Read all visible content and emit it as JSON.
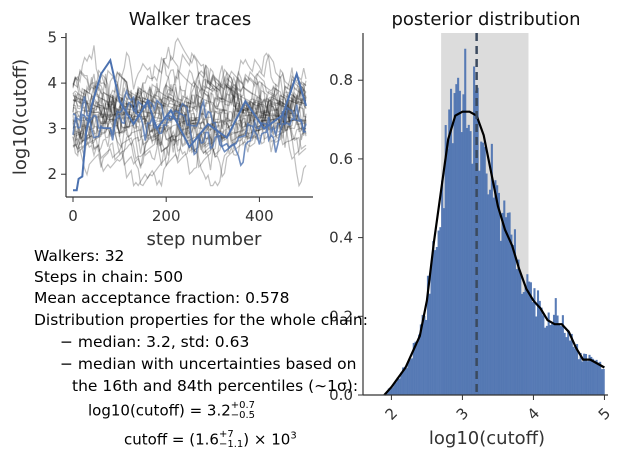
{
  "colors": {
    "trace_dark": "#1a1a1a",
    "trace_blue": "#4c72b0",
    "hist": "#4c72b0",
    "band": "#dcdcdc",
    "kde": "#000000",
    "median_line": "#3b4a5e"
  },
  "chart_data": [
    {
      "type": "line",
      "title": "Walker traces",
      "xlabel": "step number",
      "ylabel": "log10(cutoff)",
      "xlim": [
        -15,
        515
      ],
      "ylim": [
        1.5,
        5.1
      ],
      "xticks": [
        0,
        200,
        400
      ],
      "yticks": [
        2,
        3,
        4,
        5
      ],
      "n_walkers": 32,
      "n_steps": 500,
      "highlight_walker_path": [
        [
          0,
          1.65
        ],
        [
          8,
          1.65
        ],
        [
          12,
          1.9
        ],
        [
          20,
          1.95
        ],
        [
          28,
          2.9
        ],
        [
          40,
          3.5
        ],
        [
          60,
          4.2
        ],
        [
          80,
          4.5
        ],
        [
          100,
          3.6
        ],
        [
          130,
          3.1
        ],
        [
          160,
          3.6
        ],
        [
          180,
          3.0
        ],
        [
          210,
          3.4
        ],
        [
          250,
          2.6
        ],
        [
          290,
          3.1
        ],
        [
          330,
          2.8
        ],
        [
          370,
          3.6
        ],
        [
          410,
          3.0
        ],
        [
          450,
          3.3
        ],
        [
          480,
          4.2
        ],
        [
          500,
          3.5
        ]
      ]
    },
    {
      "type": "bar",
      "title": "posterior distribution",
      "xlabel": "log10(cutoff)",
      "ylabel": "",
      "xlim": [
        1.6,
        5.05
      ],
      "ylim": [
        0,
        0.92
      ],
      "xticks": [
        2,
        3,
        4,
        5
      ],
      "yticks": [
        0.0,
        0.2,
        0.4,
        0.6,
        0.8
      ],
      "median": 3.2,
      "band": [
        2.7,
        3.93
      ],
      "kde_x": [
        1.9,
        2.0,
        2.2,
        2.4,
        2.5,
        2.6,
        2.7,
        2.8,
        2.9,
        3.0,
        3.1,
        3.2,
        3.3,
        3.4,
        3.5,
        3.6,
        3.7,
        3.8,
        3.9,
        4.0,
        4.1,
        4.2,
        4.3,
        4.4,
        4.5,
        4.6,
        4.7,
        4.8,
        4.9,
        5.0
      ],
      "kde_y": [
        0.0,
        0.02,
        0.07,
        0.15,
        0.24,
        0.39,
        0.52,
        0.65,
        0.71,
        0.72,
        0.72,
        0.71,
        0.66,
        0.57,
        0.48,
        0.42,
        0.38,
        0.32,
        0.27,
        0.24,
        0.22,
        0.19,
        0.18,
        0.18,
        0.16,
        0.12,
        0.09,
        0.09,
        0.08,
        0.07
      ]
    }
  ],
  "info": {
    "walkers": "Walkers: 32",
    "steps": "Steps in chain: 500",
    "acceptance": "Mean acceptance fraction: 0.578",
    "dist_heading": "Distribution properties for the whole chain:",
    "median_std": "− median: 3.2, std: 0.63",
    "uncert_1": "− median with uncertainties based on",
    "uncert_2": "the 16th and 84th percentiles (∼1σ):",
    "eq1_lhs": "log10(cutoff) = 3.2",
    "eq1_sup": "+0.7",
    "eq1_sub": "−0.5",
    "eq2_lhs": "cutoff = (1.6",
    "eq2_sup": "+7",
    "eq2_sub": "−1.1",
    "eq2_rhs": ") × 10",
    "eq2_exp": "3"
  }
}
